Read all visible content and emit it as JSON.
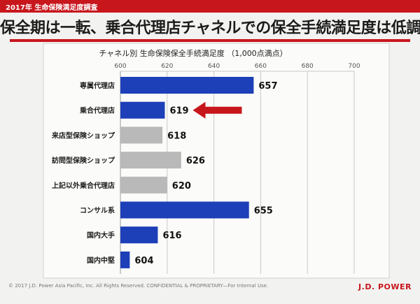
{
  "header": {
    "band_text": "2017年 生命保険満足度調査",
    "headline": "保全期は一転、乗合代理店チャネルでの保全手続満足度は低調"
  },
  "chart_data": {
    "type": "bar",
    "orientation": "horizontal",
    "title": "チャネル別 生命保険保全手続満足度 （1,000点満点）",
    "categories": [
      "専属代理店",
      "乗合代理店",
      "来店型保険ショップ",
      "訪問型保険ショップ",
      "上記以外乗合代理店",
      "コンサル系",
      "国内大手",
      "国内中堅"
    ],
    "values": [
      657,
      619,
      618,
      626,
      620,
      655,
      616,
      604
    ],
    "bar_colors": [
      "#1d3fb8",
      "#1d3fb8",
      "#b9b9b9",
      "#b9b9b9",
      "#b9b9b9",
      "#1d3fb8",
      "#1d3fb8",
      "#1d3fb8"
    ],
    "xlim": [
      600,
      700
    ],
    "xticks": [
      "600",
      "620",
      "640",
      "660",
      "680",
      "700"
    ],
    "highlight": "乗合代理店",
    "grid": true
  },
  "footer": {
    "copyright": "© 2017 J.D. Power Asia Pacific, Inc. All Rights Reserved. CONFIDENTIAL & PROPRIETARY—For Internal Use.",
    "logo": "J.D. POWER"
  },
  "colors": {
    "accent": "#c8161d",
    "primary_bar": "#1d3fb8",
    "secondary_bar": "#b9b9b9"
  }
}
